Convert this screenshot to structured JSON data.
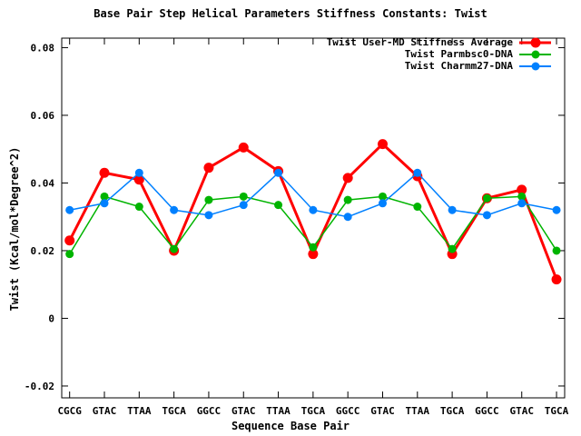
{
  "title": "Base Pair Step Helical Parameters Stiffness Constants: Twist",
  "axes": {
    "xlabel": "Sequence Base Pair",
    "ylabel": "Twist (Kcal/mol*Degree^2)",
    "y_tick_labels": [
      "-0.02",
      "0",
      "0.02",
      "0.04",
      "0.06",
      "0.08"
    ],
    "y_tick_values": [
      -0.02,
      0,
      0.02,
      0.04,
      0.06,
      0.08
    ]
  },
  "chart_data": {
    "type": "line",
    "title": "Base Pair Step Helical Parameters Stiffness Constants: Twist",
    "xlabel": "Sequence Base Pair",
    "ylabel": "Twist (Kcal/mol*Degree^2)",
    "categories": [
      "CGCG",
      "GTAC",
      "TTAA",
      "TGCA",
      "GGCC",
      "GTAC",
      "TTAA",
      "TGCA",
      "GGCC",
      "GTAC",
      "TTAA",
      "TGCA",
      "GGCC",
      "GTAC",
      "TGCA"
    ],
    "series": [
      {
        "name": "Twist User-MD Stiffness Average",
        "color": "#ff0000",
        "values": [
          0.023,
          0.043,
          0.041,
          0.02,
          0.0445,
          0.0505,
          0.0435,
          0.019,
          0.0415,
          0.0515,
          0.042,
          0.019,
          0.0355,
          0.038,
          0.0115
        ]
      },
      {
        "name": "Twist Parmbsc0-DNA",
        "color": "#00b400",
        "values": [
          0.019,
          0.036,
          0.033,
          0.0205,
          0.035,
          0.036,
          0.0335,
          0.021,
          0.035,
          0.036,
          0.033,
          0.0205,
          0.0355,
          0.036,
          0.02
        ]
      },
      {
        "name": "Twist Charmm27-DNA",
        "color": "#0080ff",
        "values": [
          0.032,
          0.034,
          0.043,
          0.032,
          0.0305,
          0.0335,
          0.043,
          0.032,
          0.03,
          0.034,
          0.043,
          0.032,
          0.0305,
          0.034,
          0.032
        ]
      }
    ],
    "ylim": [
      -0.0235,
      0.0828
    ],
    "y_ticks": [
      -0.02,
      0,
      0.02,
      0.04,
      0.06,
      0.08
    ],
    "grid": false,
    "legend_position": "top-right",
    "axis_color": "#000000",
    "background_color": "#ffffff"
  }
}
